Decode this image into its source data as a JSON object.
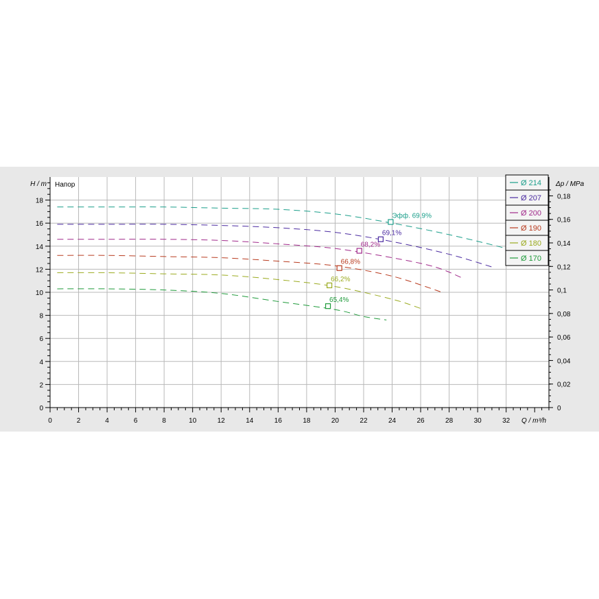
{
  "chart_data": {
    "type": "line",
    "title": "Напор",
    "xlabel": "Q / m³/h",
    "ylabel": "H / m",
    "y2label": "Δp / MPa",
    "xlim": [
      0,
      35
    ],
    "ylim": [
      0,
      20
    ],
    "y2lim": [
      0,
      0.196
    ],
    "x_ticks": [
      "0",
      "2",
      "4",
      "6",
      "8",
      "10",
      "12",
      "14",
      "16",
      "18",
      "20",
      "22",
      "24",
      "26",
      "28",
      "30",
      "32"
    ],
    "y_ticks": [
      "0",
      "2",
      "4",
      "6",
      "8",
      "10",
      "12",
      "14",
      "16",
      "18"
    ],
    "y2_ticks": [
      "0",
      "0,02",
      "0,04",
      "0,06",
      "0,08",
      "0,1",
      "0,12",
      "0,14",
      "0,16",
      "0,18"
    ],
    "grid": true,
    "legend_position": "top-right",
    "series": [
      {
        "name": "Ø 214",
        "color": "#1a9e8a",
        "x": [
          0.5,
          4,
          8,
          12,
          16,
          20,
          24,
          28,
          32,
          34
        ],
        "y": [
          17.4,
          17.4,
          17.4,
          17.3,
          17.2,
          16.8,
          16.0,
          15.0,
          13.8,
          13.0
        ],
        "bep": {
          "x": 23.9,
          "y": 16.1,
          "label": "Эфф.  69,9%"
        }
      },
      {
        "name": "Ø 207",
        "color": "#4a2aa0",
        "x": [
          0.5,
          4,
          8,
          12,
          16,
          20,
          24,
          28,
          31
        ],
        "y": [
          15.9,
          15.9,
          15.9,
          15.8,
          15.6,
          15.2,
          14.4,
          13.3,
          12.2
        ],
        "bep": {
          "x": 23.2,
          "y": 14.6,
          "label": "69,1%"
        }
      },
      {
        "name": "Ø 200",
        "color": "#a0288a",
        "x": [
          0.5,
          4,
          8,
          12,
          16,
          20,
          24,
          27,
          29
        ],
        "y": [
          14.6,
          14.6,
          14.6,
          14.5,
          14.2,
          13.8,
          13.0,
          12.2,
          11.2
        ],
        "bep": {
          "x": 21.7,
          "y": 13.6,
          "label": "68,2%"
        }
      },
      {
        "name": "Ø 190",
        "color": "#b83a1e",
        "x": [
          0.5,
          4,
          8,
          12,
          16,
          20,
          24,
          27.5
        ],
        "y": [
          13.2,
          13.2,
          13.1,
          13.0,
          12.7,
          12.3,
          11.4,
          10.0
        ],
        "bep": {
          "x": 20.3,
          "y": 12.1,
          "label": "66,8%"
        }
      },
      {
        "name": "Ø 180",
        "color": "#9aaa1e",
        "x": [
          0.5,
          4,
          8,
          12,
          16,
          20,
          24,
          26
        ],
        "y": [
          11.7,
          11.7,
          11.6,
          11.5,
          11.1,
          10.5,
          9.4,
          8.6
        ],
        "bep": {
          "x": 19.6,
          "y": 10.6,
          "label": "66,2%"
        }
      },
      {
        "name": "Ø 170",
        "color": "#1e9a3a",
        "x": [
          0.5,
          4,
          8,
          12,
          16,
          20,
          22,
          23.6
        ],
        "y": [
          10.3,
          10.3,
          10.2,
          9.9,
          9.2,
          8.5,
          7.9,
          7.6
        ],
        "bep": {
          "x": 19.5,
          "y": 8.8,
          "label": "65,4%"
        }
      }
    ]
  }
}
